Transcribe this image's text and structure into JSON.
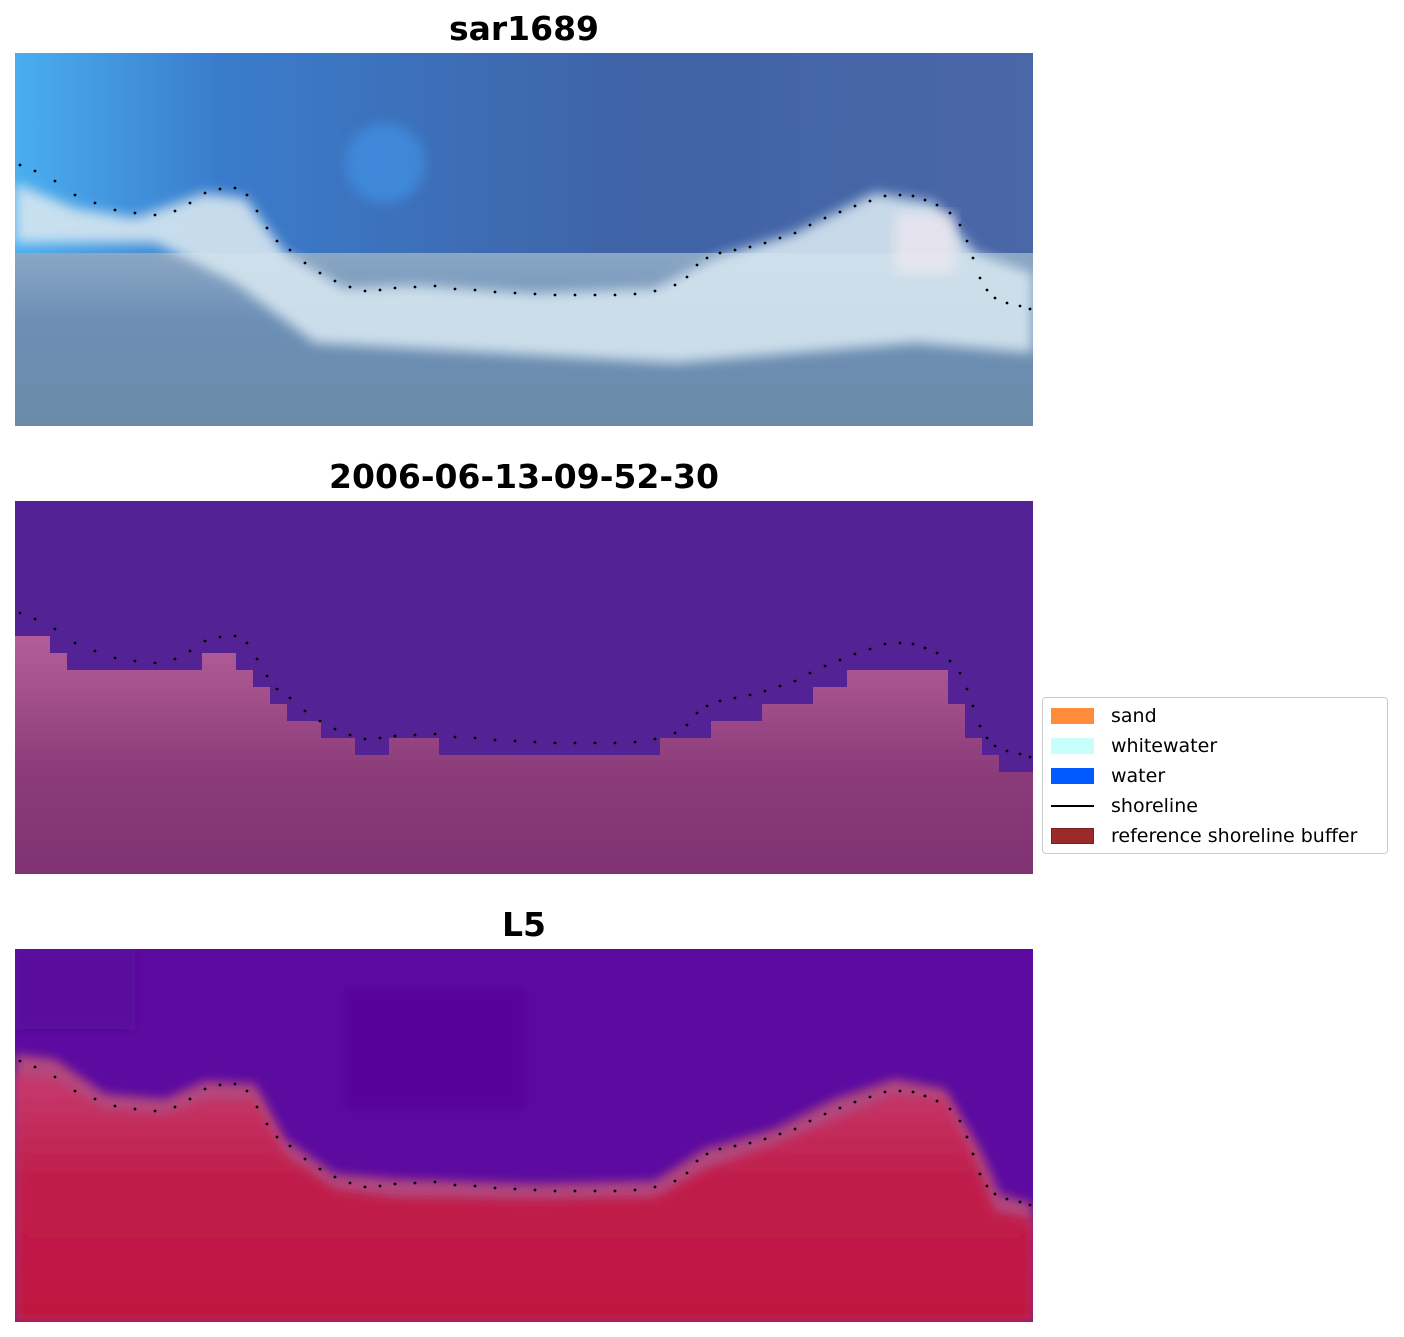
{
  "panels": [
    {
      "title": "sar1689",
      "kind": "rgb"
    },
    {
      "title": "2006-06-13-09-52-30",
      "kind": "classified"
    },
    {
      "title": "L5",
      "kind": "index"
    }
  ],
  "legend": {
    "items": [
      {
        "label": "sand",
        "color": "#ff8c3a",
        "type": "patch"
      },
      {
        "label": "whitewater",
        "color": "#c8fffb",
        "type": "patch"
      },
      {
        "label": "water",
        "color": "#005aff",
        "type": "patch"
      },
      {
        "label": "shoreline",
        "color": "#000000",
        "type": "line"
      },
      {
        "label": "reference shoreline buffer",
        "color": "#9b2b2b",
        "type": "patch"
      }
    ]
  },
  "colors": {
    "classified_water": "#532396",
    "classified_land": "#7f3372",
    "index_water": "#5c0aa0",
    "index_land": "#c0163f",
    "shoreline_dots": "#000000"
  }
}
